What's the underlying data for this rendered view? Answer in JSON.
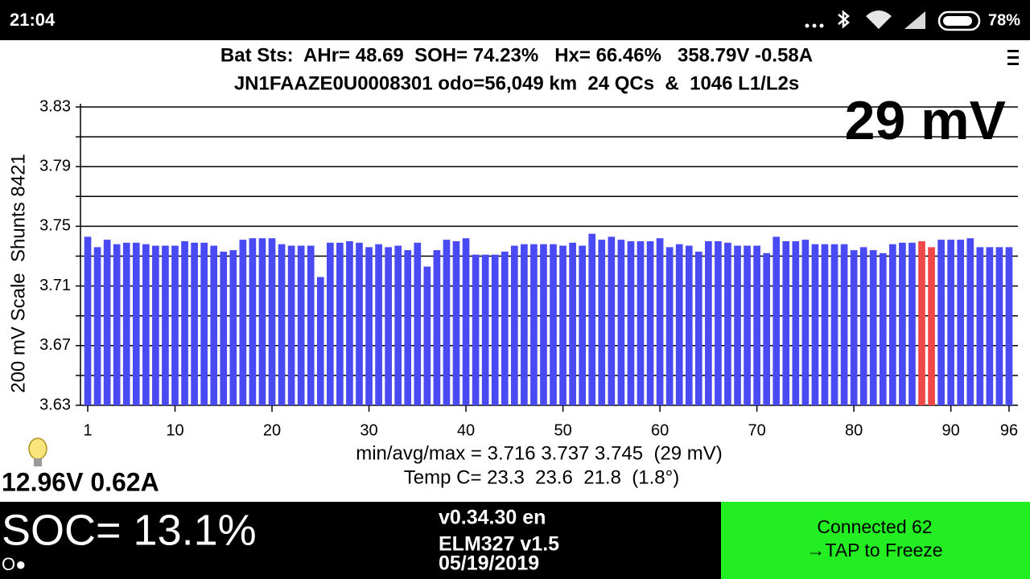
{
  "status_bar": {
    "time": "21:04",
    "battery": "78%"
  },
  "header": {
    "line1": "Bat Sts:  AHr= 48.69  SOH= 74.23%   Hx= 66.46%   358.79V -0.58A",
    "line2": "JN1FAAZE0U0008301 odo=56,049 km  24 QCs  &  1046 L1/L2s"
  },
  "chart_data": {
    "type": "bar",
    "y_label": "200 mV Scale  Shunts 8421",
    "annotation": "29 mV",
    "x": [
      1,
      2,
      3,
      4,
      5,
      6,
      7,
      8,
      9,
      10,
      11,
      12,
      13,
      14,
      15,
      16,
      17,
      18,
      19,
      20,
      21,
      22,
      23,
      24,
      25,
      26,
      27,
      28,
      29,
      30,
      31,
      32,
      33,
      34,
      35,
      36,
      37,
      38,
      39,
      40,
      41,
      42,
      43,
      44,
      45,
      46,
      47,
      48,
      49,
      50,
      51,
      52,
      53,
      54,
      55,
      56,
      57,
      58,
      59,
      60,
      61,
      62,
      63,
      64,
      65,
      66,
      67,
      68,
      69,
      70,
      71,
      72,
      73,
      74,
      75,
      76,
      77,
      78,
      79,
      80,
      81,
      82,
      83,
      84,
      85,
      86,
      87,
      88,
      89,
      90,
      91,
      92,
      93,
      94,
      95,
      96
    ],
    "values": [
      3.743,
      3.736,
      3.741,
      3.738,
      3.739,
      3.739,
      3.738,
      3.737,
      3.737,
      3.737,
      3.74,
      3.739,
      3.739,
      3.737,
      3.733,
      3.734,
      3.741,
      3.742,
      3.742,
      3.742,
      3.738,
      3.737,
      3.737,
      3.737,
      3.716,
      3.739,
      3.739,
      3.74,
      3.739,
      3.736,
      3.738,
      3.736,
      3.737,
      3.734,
      3.739,
      3.723,
      3.734,
      3.741,
      3.74,
      3.742,
      3.731,
      3.731,
      3.731,
      3.733,
      3.737,
      3.738,
      3.738,
      3.738,
      3.738,
      3.737,
      3.739,
      3.737,
      3.745,
      3.741,
      3.743,
      3.741,
      3.74,
      3.74,
      3.74,
      3.742,
      3.736,
      3.738,
      3.737,
      3.733,
      3.74,
      3.74,
      3.739,
      3.737,
      3.737,
      3.737,
      3.732,
      3.743,
      3.74,
      3.74,
      3.741,
      3.738,
      3.738,
      3.738,
      3.738,
      3.734,
      3.736,
      3.734,
      3.732,
      3.738,
      3.739,
      3.739,
      3.74,
      3.736,
      3.741,
      3.741,
      3.741,
      3.742,
      3.736,
      3.736,
      3.736,
      3.736
    ],
    "colors": [
      "#4a4af2",
      "#4a4af2",
      "#4a4af2",
      "#4a4af2",
      "#4a4af2",
      "#4a4af2",
      "#4a4af2",
      "#4a4af2",
      "#4a4af2",
      "#4a4af2",
      "#4a4af2",
      "#4a4af2",
      "#4a4af2",
      "#4a4af2",
      "#4a4af2",
      "#4a4af2",
      "#4a4af2",
      "#4a4af2",
      "#4a4af2",
      "#4a4af2",
      "#4a4af2",
      "#4a4af2",
      "#4a4af2",
      "#4a4af2",
      "#4a4af2",
      "#4a4af2",
      "#4a4af2",
      "#4a4af2",
      "#4a4af2",
      "#4a4af2",
      "#4a4af2",
      "#4a4af2",
      "#4a4af2",
      "#4a4af2",
      "#4a4af2",
      "#4a4af2",
      "#4a4af2",
      "#4a4af2",
      "#4a4af2",
      "#4a4af2",
      "#4a4af2",
      "#4a4af2",
      "#4a4af2",
      "#4a4af2",
      "#4a4af2",
      "#4a4af2",
      "#4a4af2",
      "#4a4af2",
      "#4a4af2",
      "#4a4af2",
      "#4a4af2",
      "#4a4af2",
      "#4a4af2",
      "#4a4af2",
      "#4a4af2",
      "#4a4af2",
      "#4a4af2",
      "#4a4af2",
      "#4a4af2",
      "#4a4af2",
      "#4a4af2",
      "#4a4af2",
      "#4a4af2",
      "#4a4af2",
      "#4a4af2",
      "#4a4af2",
      "#4a4af2",
      "#4a4af2",
      "#4a4af2",
      "#4a4af2",
      "#4a4af2",
      "#4a4af2",
      "#4a4af2",
      "#4a4af2",
      "#4a4af2",
      "#4a4af2",
      "#4a4af2",
      "#4a4af2",
      "#4a4af2",
      "#4a4af2",
      "#4a4af2",
      "#4a4af2",
      "#4a4af2",
      "#4a4af2",
      "#4a4af2",
      "#4a4af2",
      "#f04848",
      "#f04848",
      "#4a4af2",
      "#4a4af2",
      "#4a4af2",
      "#4a4af2",
      "#4a4af2",
      "#4a4af2",
      "#4a4af2",
      "#4a4af2"
    ],
    "ylim": [
      3.63,
      3.83
    ],
    "yticks": [
      3.63,
      3.67,
      3.71,
      3.75,
      3.79,
      3.83
    ],
    "minor_yticks": [
      3.65,
      3.69,
      3.73,
      3.77,
      3.81
    ],
    "xticks": [
      1,
      10,
      20,
      30,
      40,
      50,
      60,
      70,
      80,
      90,
      96
    ],
    "grid": true
  },
  "stats": {
    "minmax": "min/avg/max = 3.716 3.737 3.745  (29 mV)",
    "temp": "Temp C= 23.3  23.6  21.8  (1.8°)"
  },
  "aux_battery": "12.96V 0.62A",
  "footer": {
    "soc": "SOC= 13.1%",
    "indicator": "O●",
    "version": "v0.34.30 en",
    "adapter": "ELM327 v1.5",
    "date": "05/19/2019",
    "status": "Connected 62",
    "action": "→TAP to Freeze"
  }
}
